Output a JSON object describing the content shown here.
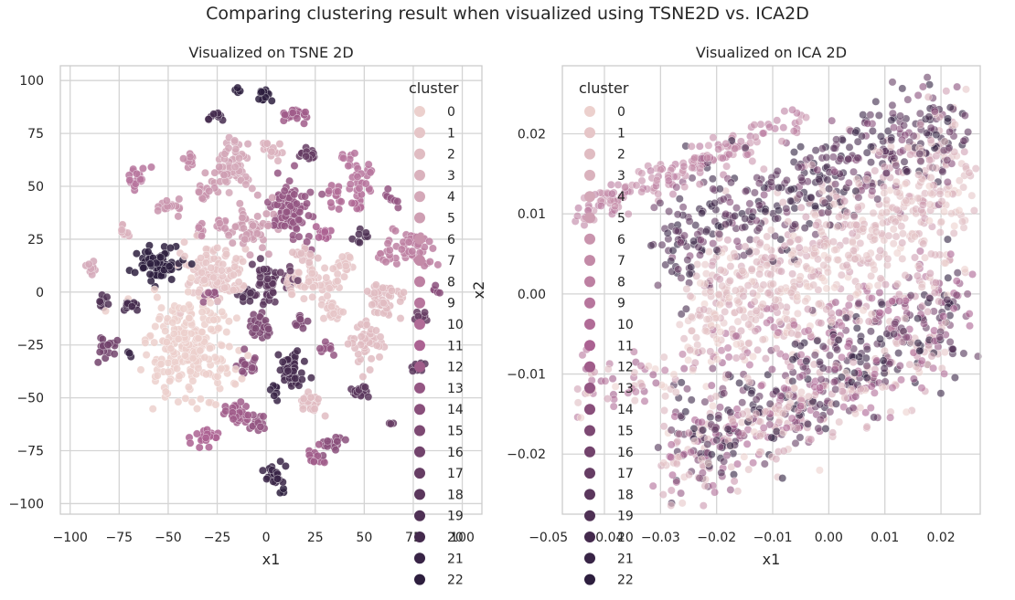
{
  "suptitle": "Comparing clustering result when visualized using TSNE2D vs. ICA2D",
  "legend": {
    "title": "cluster",
    "labels": [
      "0",
      "1",
      "2",
      "3",
      "4",
      "5",
      "6",
      "7",
      "8",
      "9",
      "10",
      "11",
      "12",
      "13",
      "14",
      "15",
      "16",
      "17",
      "18",
      "19",
      "20",
      "21",
      "22"
    ],
    "palette_start": "#ecd0cd",
    "palette_end": "#2d1e3e"
  },
  "chart_data": [
    {
      "type": "scatter",
      "title": "Visualized on TSNE 2D",
      "xlabel": "x1",
      "ylabel": "",
      "xlim": [
        -105,
        110
      ],
      "ylim": [
        -105,
        107
      ],
      "xticks": [
        -100,
        -75,
        -50,
        -25,
        0,
        25,
        50,
        75,
        100
      ],
      "xtick_labels": [
        "−100",
        "−75",
        "−50",
        "−25",
        "0",
        "25",
        "50",
        "75",
        "100"
      ],
      "yticks": [
        -100,
        -75,
        -50,
        -25,
        0,
        25,
        50,
        75,
        100
      ],
      "ytick_labels": [
        "−100",
        "−75",
        "−50",
        "−25",
        "0",
        "25",
        "50",
        "75",
        "100"
      ],
      "grid": true,
      "legend_placement": "right",
      "hue": "cluster",
      "cluster_centers": [
        {
          "x": -38,
          "y": -28,
          "cluster": 0,
          "sx": 11,
          "sy": 13,
          "n": 230
        },
        {
          "x": -28,
          "y": 8,
          "cluster": 1,
          "sx": 8,
          "sy": 6,
          "n": 110
        },
        {
          "x": 23,
          "y": 5,
          "cluster": 1,
          "sx": 8,
          "sy": 4,
          "n": 60
        },
        {
          "x": 52,
          "y": -25,
          "cluster": 2,
          "sx": 4,
          "sy": 6,
          "n": 45
        },
        {
          "x": 60,
          "y": -3,
          "cluster": 2,
          "sx": 5,
          "sy": 4,
          "n": 45
        },
        {
          "x": 22,
          "y": -53,
          "cluster": 2,
          "sx": 3,
          "sy": 3,
          "n": 25
        },
        {
          "x": 33,
          "y": -8,
          "cluster": 1,
          "sx": 3,
          "sy": 3,
          "n": 20
        },
        {
          "x": 40,
          "y": 13,
          "cluster": 1,
          "sx": 3,
          "sy": 3,
          "n": 18
        },
        {
          "x": 20,
          "y": 18,
          "cluster": 2,
          "sx": 3,
          "sy": 2,
          "n": 16
        },
        {
          "x": -73,
          "y": 29,
          "cluster": 3,
          "sx": 2,
          "sy": 2,
          "n": 10
        },
        {
          "x": -90,
          "y": 12,
          "cluster": 4,
          "sx": 2,
          "sy": 2,
          "n": 10
        },
        {
          "x": -8,
          "y": 30,
          "cluster": 5,
          "sx": 5,
          "sy": 5,
          "n": 60
        },
        {
          "x": -18,
          "y": 64,
          "cluster": 4,
          "sx": 4,
          "sy": 4,
          "n": 30
        },
        {
          "x": -24,
          "y": 56,
          "cluster": 5,
          "sx": 3,
          "sy": 3,
          "n": 20
        },
        {
          "x": -12,
          "y": 53,
          "cluster": 4,
          "sx": 3,
          "sy": 3,
          "n": 16
        },
        {
          "x": 2,
          "y": 67,
          "cluster": 3,
          "sx": 3,
          "sy": 2,
          "n": 16
        },
        {
          "x": -31,
          "y": 47,
          "cluster": 6,
          "sx": 2,
          "sy": 2,
          "n": 12
        },
        {
          "x": -49,
          "y": 40,
          "cluster": 6,
          "sx": 3,
          "sy": 2,
          "n": 18
        },
        {
          "x": -40,
          "y": 62,
          "cluster": 7,
          "sx": 2,
          "sy": 2,
          "n": 10
        },
        {
          "x": -33,
          "y": 28,
          "cluster": 7,
          "sx": 2,
          "sy": 2,
          "n": 10
        },
        {
          "x": -23,
          "y": 32,
          "cluster": 6,
          "sx": 2,
          "sy": 2,
          "n": 10
        },
        {
          "x": -66,
          "y": 54,
          "cluster": 9,
          "sx": 3,
          "sy": 3,
          "n": 18
        },
        {
          "x": 73,
          "y": 21,
          "cluster": 8,
          "sx": 6,
          "sy": 5,
          "n": 60
        },
        {
          "x": 51,
          "y": 52,
          "cluster": 9,
          "sx": 3,
          "sy": 5,
          "n": 24
        },
        {
          "x": 42,
          "y": 63,
          "cluster": 9,
          "sx": 2,
          "sy": 2,
          "n": 8
        },
        {
          "x": 35,
          "y": 46,
          "cluster": 10,
          "sx": 2,
          "sy": 3,
          "n": 14
        },
        {
          "x": 47,
          "y": 42,
          "cluster": 10,
          "sx": 2,
          "sy": 2,
          "n": 10
        },
        {
          "x": 29,
          "y": 28,
          "cluster": 11,
          "sx": 2,
          "sy": 2,
          "n": 10
        },
        {
          "x": 22,
          "y": 66,
          "cluster": 17,
          "sx": 3,
          "sy": 2,
          "n": 14
        },
        {
          "x": 13,
          "y": 40,
          "cluster": 13,
          "sx": 5,
          "sy": 7,
          "n": 90
        },
        {
          "x": 63,
          "y": 45,
          "cluster": 13,
          "sx": 2,
          "sy": 2,
          "n": 8
        },
        {
          "x": 15,
          "y": 84,
          "cluster": 12,
          "sx": 3,
          "sy": 2,
          "n": 22
        },
        {
          "x": -27,
          "y": 83,
          "cluster": 20,
          "sx": 2,
          "sy": 1.5,
          "n": 10
        },
        {
          "x": -2,
          "y": 93,
          "cluster": 22,
          "sx": 2,
          "sy": 2,
          "n": 14
        },
        {
          "x": -14,
          "y": 96,
          "cluster": 22,
          "sx": 1,
          "sy": 1,
          "n": 4
        },
        {
          "x": -55,
          "y": 13,
          "cluster": 22,
          "sx": 6,
          "sy": 4,
          "n": 70
        },
        {
          "x": -83,
          "y": -4,
          "cluster": 19,
          "sx": 2,
          "sy": 2,
          "n": 10
        },
        {
          "x": -70,
          "y": -6,
          "cluster": 20,
          "sx": 2,
          "sy": 2,
          "n": 14
        },
        {
          "x": -82,
          "y": -26,
          "cluster": 16,
          "sx": 3,
          "sy": 3,
          "n": 18
        },
        {
          "x": -69,
          "y": -30,
          "cluster": 21,
          "sx": 1,
          "sy": 1,
          "n": 3
        },
        {
          "x": 0,
          "y": 5,
          "cluster": 18,
          "sx": 3,
          "sy": 5,
          "n": 40
        },
        {
          "x": -10,
          "y": 0,
          "cluster": 19,
          "sx": 2,
          "sy": 2,
          "n": 14
        },
        {
          "x": 12,
          "y": 7,
          "cluster": 17,
          "sx": 2,
          "sy": 3,
          "n": 12
        },
        {
          "x": -4,
          "y": -16,
          "cluster": 15,
          "sx": 3,
          "sy": 3,
          "n": 24
        },
        {
          "x": 13,
          "y": -36,
          "cluster": 20,
          "sx": 3,
          "sy": 5,
          "n": 50
        },
        {
          "x": 3,
          "y": -47,
          "cluster": 21,
          "sx": 2,
          "sy": 2,
          "n": 8
        },
        {
          "x": 17,
          "y": -14,
          "cluster": 15,
          "sx": 2,
          "sy": 2,
          "n": 12
        },
        {
          "x": -9,
          "y": -34,
          "cluster": 14,
          "sx": 3,
          "sy": 3,
          "n": 18
        },
        {
          "x": -28,
          "y": -1,
          "cluster": 13,
          "sx": 2,
          "sy": 2,
          "n": 10
        },
        {
          "x": 32,
          "y": -26,
          "cluster": 13,
          "sx": 2,
          "sy": 2,
          "n": 10
        },
        {
          "x": 48,
          "y": -48,
          "cluster": 18,
          "sx": 3,
          "sy": 2,
          "n": 18
        },
        {
          "x": 76,
          "y": -35,
          "cluster": 18,
          "sx": 2,
          "sy": 2,
          "n": 10
        },
        {
          "x": 80,
          "y": -12,
          "cluster": 17,
          "sx": 2,
          "sy": 2,
          "n": 10
        },
        {
          "x": 86,
          "y": 0,
          "cluster": 14,
          "sx": 1.5,
          "sy": 1.5,
          "n": 5
        },
        {
          "x": 63,
          "y": -63,
          "cluster": 17,
          "sx": 1,
          "sy": 1,
          "n": 3
        },
        {
          "x": 48,
          "y": 27,
          "cluster": 19,
          "sx": 2,
          "sy": 2,
          "n": 8
        },
        {
          "x": -14,
          "y": -58,
          "cluster": 12,
          "sx": 4,
          "sy": 3,
          "n": 30
        },
        {
          "x": -5,
          "y": -62,
          "cluster": 13,
          "sx": 3,
          "sy": 3,
          "n": 16
        },
        {
          "x": -30,
          "y": -68,
          "cluster": 11,
          "sx": 3,
          "sy": 3,
          "n": 20
        },
        {
          "x": 32,
          "y": -72,
          "cluster": 14,
          "sx": 3,
          "sy": 2,
          "n": 16
        },
        {
          "x": 25,
          "y": -78,
          "cluster": 12,
          "sx": 3,
          "sy": 2,
          "n": 16
        },
        {
          "x": 4,
          "y": -86,
          "cluster": 21,
          "sx": 3,
          "sy": 3,
          "n": 22
        },
        {
          "x": 8,
          "y": -94,
          "cluster": 22,
          "sx": 1,
          "sy": 1,
          "n": 3
        }
      ]
    },
    {
      "type": "scatter",
      "title": "Visualized on ICA 2D",
      "xlabel": "x1",
      "ylabel": "x2",
      "xlim": [
        -0.0475,
        0.027
      ],
      "ylim": [
        -0.0275,
        0.0285
      ],
      "xticks": [
        -0.05,
        -0.04,
        -0.03,
        -0.02,
        -0.01,
        0.0,
        0.01,
        0.02
      ],
      "xtick_labels": [
        "−0.05",
        "−0.04",
        "−0.03",
        "−0.02",
        "−0.01",
        "0.00",
        "0.01",
        "0.02"
      ],
      "yticks": [
        -0.02,
        -0.01,
        0.0,
        0.01,
        0.02
      ],
      "ytick_labels": [
        "−0.02",
        "−0.01",
        "0.00",
        "0.01",
        "0.02"
      ],
      "grid": true,
      "legend_placement": "upper left",
      "hue": "cluster",
      "point_bands": [
        {
          "x0": -0.045,
          "y0": 0.01,
          "x1": -0.005,
          "y1": 0.022,
          "w": 0.0012,
          "n": 170,
          "clusters": [
            6,
            7,
            8,
            9
          ]
        },
        {
          "x0": -0.03,
          "y0": 0.006,
          "x1": 0.023,
          "y1": 0.022,
          "w": 0.0035,
          "n": 420,
          "clusters": [
            14,
            16,
            17,
            18,
            20,
            21,
            22
          ]
        },
        {
          "x0": -0.022,
          "y0": 0.0,
          "x1": 0.024,
          "y1": 0.018,
          "w": 0.004,
          "n": 320,
          "clusters": [
            1,
            2,
            3,
            4,
            5
          ]
        },
        {
          "x0": -0.025,
          "y0": -0.004,
          "x1": 0.025,
          "y1": 0.01,
          "w": 0.0035,
          "n": 300,
          "clusters": [
            0,
            1,
            2,
            3
          ]
        },
        {
          "x0": -0.045,
          "y0": -0.013,
          "x1": 0.022,
          "y1": 0.002,
          "w": 0.002,
          "n": 200,
          "clusters": [
            0,
            2,
            5,
            9,
            10,
            12
          ]
        },
        {
          "x0": -0.028,
          "y0": -0.02,
          "x1": 0.024,
          "y1": -0.002,
          "w": 0.0035,
          "n": 420,
          "clusters": [
            11,
            13,
            15,
            17,
            19,
            21,
            22
          ]
        },
        {
          "x0": -0.03,
          "y0": -0.022,
          "x1": 0.02,
          "y1": -0.006,
          "w": 0.003,
          "n": 260,
          "clusters": [
            0,
            1,
            2,
            3,
            4,
            6,
            10
          ]
        }
      ]
    }
  ]
}
